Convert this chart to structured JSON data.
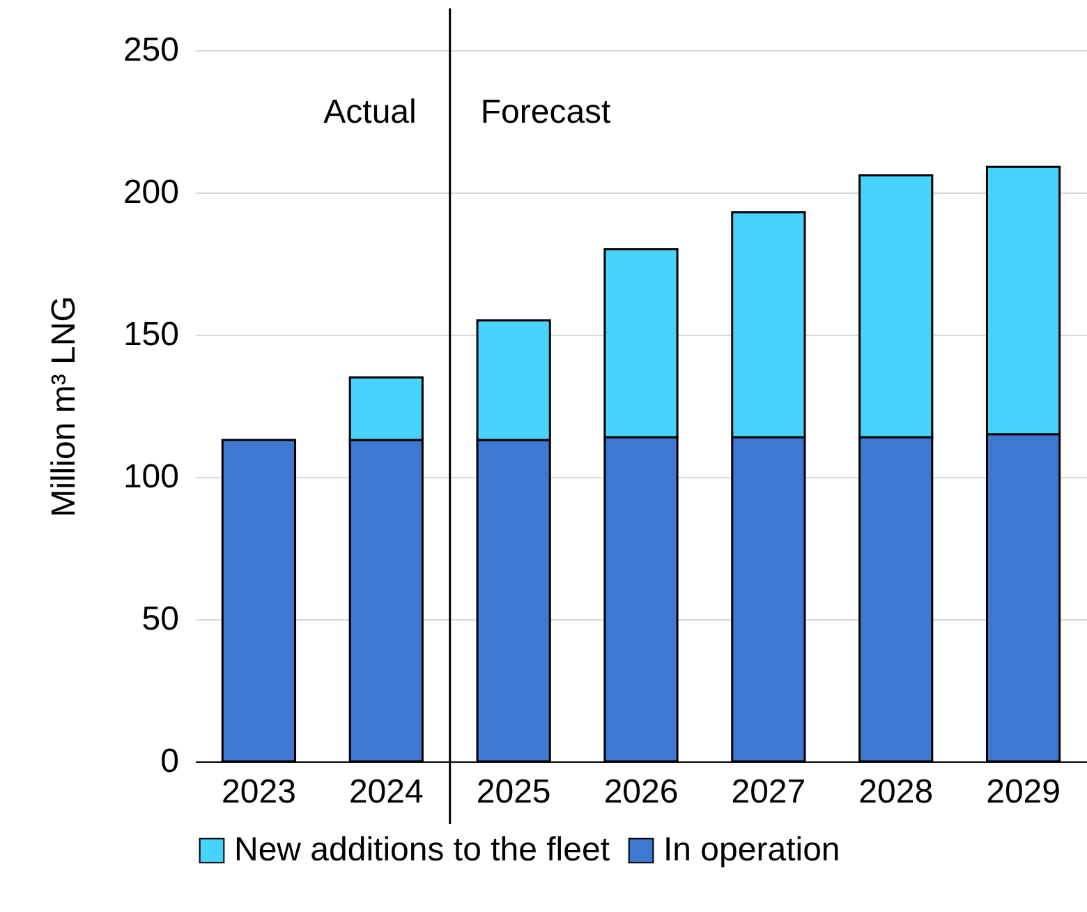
{
  "chart_data": {
    "type": "bar",
    "stacked": true,
    "ylabel": "Million m³ LNG",
    "categories": [
      "2023",
      "2024",
      "2025",
      "2026",
      "2027",
      "2028",
      "2029"
    ],
    "series": [
      {
        "name": "In operation",
        "color": "#3e78d2",
        "values": [
          113,
          113,
          113,
          114,
          114,
          114,
          115
        ]
      },
      {
        "name": "New additions to the fleet",
        "color": "#47d4fc",
        "values": [
          null,
          22,
          42,
          66,
          79,
          92,
          94
        ]
      }
    ],
    "ylim": [
      0,
      250
    ],
    "yticks": [
      0,
      50,
      100,
      150,
      200,
      250
    ],
    "grid": "y",
    "legend": "bottom",
    "ref_lines": [
      {
        "axis": "x",
        "value": "2025",
        "label": null,
        "color": "#000000"
      }
    ],
    "annotations": [
      "Actual",
      "Forecast"
    ]
  }
}
